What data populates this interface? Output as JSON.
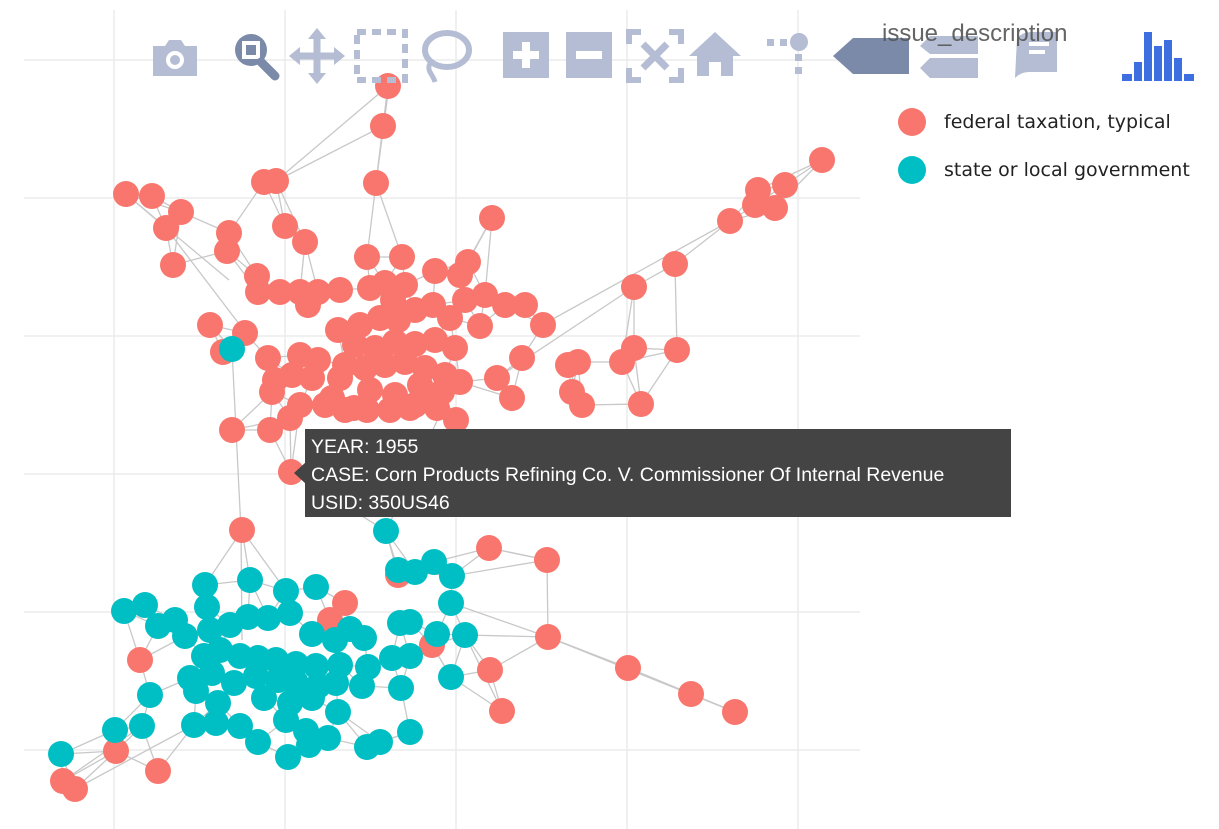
{
  "chart_data": {
    "type": "scatter",
    "title": "",
    "xlabel": "",
    "ylabel": "",
    "grid": true,
    "legend_position": "top-right",
    "legend": {
      "title": "issue_description",
      "entries": [
        {
          "label": "federal taxation, typical",
          "color": "#F8766D"
        },
        {
          "label": "state or local government",
          "color": "#00BFC4"
        }
      ]
    },
    "series": [
      {
        "name": "federal taxation, typical",
        "color": "#F8766D",
        "points": [
          [
            388,
            86
          ],
          [
            383,
            126
          ],
          [
            376,
            183
          ],
          [
            126,
            194
          ],
          [
            152,
            196
          ],
          [
            181,
            212
          ],
          [
            166,
            228
          ],
          [
            229,
            233
          ],
          [
            227,
            251
          ],
          [
            173,
            265
          ],
          [
            264,
            182
          ],
          [
            276,
            181
          ],
          [
            285,
            226
          ],
          [
            305,
            242
          ],
          [
            367,
            257
          ],
          [
            402,
            257
          ],
          [
            492,
            218
          ],
          [
            257,
            276
          ],
          [
            258,
            292
          ],
          [
            280,
            292
          ],
          [
            300,
            292
          ],
          [
            318,
            292
          ],
          [
            340,
            290
          ],
          [
            308,
            305
          ],
          [
            370,
            288
          ],
          [
            385,
            283
          ],
          [
            393,
            300
          ],
          [
            405,
            285
          ],
          [
            435,
            271
          ],
          [
            460,
            275
          ],
          [
            468,
            262
          ],
          [
            465,
            300
          ],
          [
            485,
            295
          ],
          [
            505,
            305
          ],
          [
            525,
            305
          ],
          [
            543,
            325
          ],
          [
            338,
            330
          ],
          [
            360,
            325
          ],
          [
            380,
            318
          ],
          [
            398,
            320
          ],
          [
            415,
            310
          ],
          [
            433,
            305
          ],
          [
            450,
            318
          ],
          [
            480,
            326
          ],
          [
            355,
            345
          ],
          [
            375,
            348
          ],
          [
            395,
            342
          ],
          [
            415,
            344
          ],
          [
            435,
            340
          ],
          [
            455,
            348
          ],
          [
            345,
            365
          ],
          [
            365,
            368
          ],
          [
            385,
            365
          ],
          [
            405,
            362
          ],
          [
            425,
            368
          ],
          [
            445,
            375
          ],
          [
            318,
            360
          ],
          [
            340,
            378
          ],
          [
            300,
            355
          ],
          [
            268,
            358
          ],
          [
            275,
            380
          ],
          [
            272,
            392
          ],
          [
            292,
            375
          ],
          [
            312,
            378
          ],
          [
            332,
            398
          ],
          [
            354,
            408
          ],
          [
            370,
            390
          ],
          [
            395,
            395
          ],
          [
            415,
            405
          ],
          [
            437,
            408
          ],
          [
            456,
            420
          ],
          [
            420,
            385
          ],
          [
            442,
            392
          ],
          [
            460,
            382
          ],
          [
            210,
            325
          ],
          [
            245,
            333
          ],
          [
            223,
            352
          ],
          [
            232,
            430
          ],
          [
            270,
            430
          ],
          [
            290,
            418
          ],
          [
            300,
            405
          ],
          [
            325,
            405
          ],
          [
            345,
            410
          ],
          [
            367,
            410
          ],
          [
            390,
            410
          ],
          [
            410,
            408
          ],
          [
            432,
            402
          ],
          [
            497,
            378
          ],
          [
            512,
            398
          ],
          [
            522,
            358
          ],
          [
            568,
            365
          ],
          [
            578,
            362
          ],
          [
            572,
            392
          ],
          [
            582,
            405
          ],
          [
            622,
            362
          ],
          [
            634,
            348
          ],
          [
            677,
            350
          ],
          [
            641,
            404
          ],
          [
            634,
            287
          ],
          [
            675,
            264
          ],
          [
            730,
            221
          ],
          [
            755,
            205
          ],
          [
            758,
            190
          ],
          [
            785,
            185
          ],
          [
            775,
            208
          ],
          [
            822,
            160
          ],
          [
            291,
            472
          ],
          [
            242,
            530
          ],
          [
            489,
            548
          ],
          [
            547,
            560
          ],
          [
            345,
            603
          ],
          [
            330,
            620
          ],
          [
            548,
            637
          ],
          [
            432,
            645
          ],
          [
            490,
            670
          ],
          [
            502,
            711
          ],
          [
            628,
            668
          ],
          [
            691,
            694
          ],
          [
            735,
            712
          ],
          [
            398,
            575
          ],
          [
            140,
            660
          ],
          [
            116,
            751
          ],
          [
            158,
            771
          ],
          [
            63,
            781
          ],
          [
            75,
            789
          ]
        ]
      },
      {
        "name": "state or local government",
        "color": "#00BFC4",
        "points": [
          [
            232,
            349
          ],
          [
            386,
            531
          ],
          [
            398,
            570
          ],
          [
            415,
            572
          ],
          [
            434,
            562
          ],
          [
            452,
            576
          ],
          [
            451,
            603
          ],
          [
            465,
            635
          ],
          [
            250,
            580
          ],
          [
            316,
            587
          ],
          [
            286,
            591
          ],
          [
            205,
            585
          ],
          [
            207,
            607
          ],
          [
            124,
            611
          ],
          [
            145,
            605
          ],
          [
            158,
            626
          ],
          [
            175,
            620
          ],
          [
            185,
            636
          ],
          [
            210,
            630
          ],
          [
            230,
            625
          ],
          [
            248,
            617
          ],
          [
            268,
            618
          ],
          [
            290,
            613
          ],
          [
            312,
            634
          ],
          [
            335,
            640
          ],
          [
            350,
            629
          ],
          [
            364,
            638
          ],
          [
            400,
            623
          ],
          [
            410,
            622
          ],
          [
            437,
            634
          ],
          [
            204,
            656
          ],
          [
            220,
            650
          ],
          [
            240,
            656
          ],
          [
            258,
            658
          ],
          [
            276,
            660
          ],
          [
            296,
            664
          ],
          [
            316,
            666
          ],
          [
            340,
            665
          ],
          [
            368,
            667
          ],
          [
            392,
            658
          ],
          [
            410,
            656
          ],
          [
            190,
            678
          ],
          [
            212,
            673
          ],
          [
            234,
            683
          ],
          [
            256,
            676
          ],
          [
            278,
            680
          ],
          [
            296,
            683
          ],
          [
            318,
            686
          ],
          [
            336,
            683
          ],
          [
            362,
            686
          ],
          [
            401,
            688
          ],
          [
            451,
            677
          ],
          [
            150,
            695
          ],
          [
            196,
            691
          ],
          [
            218,
            703
          ],
          [
            264,
            698
          ],
          [
            290,
            703
          ],
          [
            312,
            698
          ],
          [
            338,
            712
          ],
          [
            115,
            730
          ],
          [
            142,
            726
          ],
          [
            194,
            725
          ],
          [
            216,
            723
          ],
          [
            240,
            726
          ],
          [
            258,
            742
          ],
          [
            286,
            720
          ],
          [
            306,
            731
          ],
          [
            328,
            738
          ],
          [
            367,
            747
          ],
          [
            380,
            742
          ],
          [
            410,
            732
          ],
          [
            288,
            757
          ],
          [
            309,
            745
          ],
          [
            61,
            754
          ]
        ]
      }
    ],
    "tooltip": {
      "lines": [
        "YEAR: 1955",
        "CASE: Corn Products Refining Co. V. Commissioner Of Internal Revenue",
        "USID: 350US46"
      ]
    }
  },
  "toolbar": {
    "buttons": [
      {
        "icon": "camera-icon",
        "active": false
      },
      {
        "icon": "zoom-icon",
        "active": true
      },
      {
        "icon": "pan-icon",
        "active": false
      },
      {
        "icon": "box-select-icon",
        "active": false
      },
      {
        "icon": "lasso-select-icon",
        "active": false
      },
      {
        "icon": "zoom-in-icon",
        "active": false
      },
      {
        "icon": "zoom-out-icon",
        "active": false
      },
      {
        "icon": "autoscale-icon",
        "active": false
      },
      {
        "icon": "reset-axes-icon",
        "active": false
      },
      {
        "icon": "spike-lines-icon",
        "active": false
      },
      {
        "icon": "hover-closest-icon",
        "active": true
      },
      {
        "icon": "hover-compare-icon",
        "active": false
      },
      {
        "icon": "edit-chart-icon",
        "active": false
      },
      {
        "icon": "plotly-logo-icon",
        "active": false
      }
    ],
    "color_inactive": "#B4BDD3",
    "color_active": "#7A8AA8",
    "logo_color": "#3D6FE0"
  }
}
